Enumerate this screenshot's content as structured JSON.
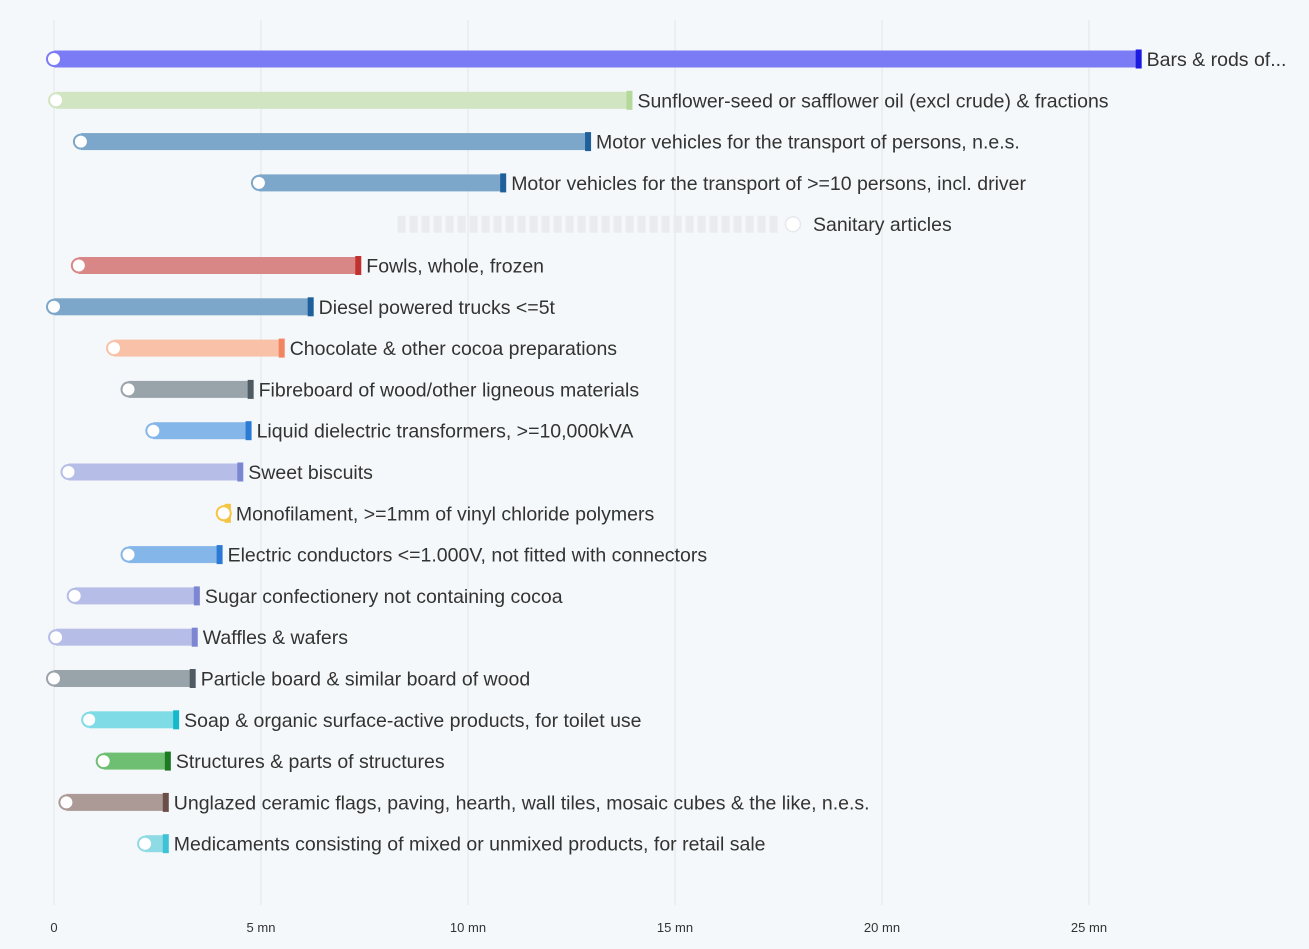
{
  "chart_data": {
    "type": "bar",
    "subtype": "range-bar",
    "title": "",
    "xlabel": "",
    "ylabel": "",
    "xlim": [
      0,
      30
    ],
    "x_tick_values": [
      0,
      5,
      10,
      15,
      20,
      25
    ],
    "x_tick_labels": [
      "0",
      "5 mn",
      "10 mn",
      "15 mn",
      "20 mn",
      "25 mn"
    ],
    "grid": true,
    "rows": [
      {
        "label": "Bars & rods of...",
        "start": 0.0,
        "end": 26.2,
        "color": "#7b7bf5",
        "end_color": "#1a1ae0"
      },
      {
        "label": "Sunflower-seed or safflower oil (excl crude) & fractions",
        "start": 0.05,
        "end": 13.9,
        "color": "#d2e5c2",
        "end_color": "#b4d99a"
      },
      {
        "label": "Motor vehicles for the transport of persons, n.e.s.",
        "start": 0.65,
        "end": 12.9,
        "color": "#7ca6ca",
        "end_color": "#1f5f9a"
      },
      {
        "label": "Motor vehicles for the transport of >=10 persons, incl. driver",
        "start": 4.95,
        "end": 10.85,
        "color": "#7ca6ca",
        "end_color": "#1f5f9a"
      },
      {
        "label": "Sanitary articles",
        "start": 17.85,
        "end": 8.3,
        "color": "#e9ebee",
        "end_color": "#e9ebee",
        "dashed": true
      },
      {
        "label": "Fowls, whole, frozen",
        "start": 0.6,
        "end": 7.35,
        "color": "#d98687",
        "end_color": "#c0312f"
      },
      {
        "label": "Diesel powered trucks <=5t",
        "start": 0.0,
        "end": 6.2,
        "color": "#7ca6ca",
        "end_color": "#1f5f9a"
      },
      {
        "label": "Chocolate & other cocoa preparations",
        "start": 1.45,
        "end": 5.5,
        "color": "#f8c1a8",
        "end_color": "#f2845f"
      },
      {
        "label": "Fibreboard of wood/other ligneous materials",
        "start": 1.8,
        "end": 4.75,
        "color": "#99a3aa",
        "end_color": "#4f5a63"
      },
      {
        "label": "Liquid dielectric transformers, >=10,000kVA",
        "start": 2.4,
        "end": 4.7,
        "color": "#85b6e9",
        "end_color": "#2a7ad6"
      },
      {
        "label": "Sweet biscuits",
        "start": 0.35,
        "end": 4.5,
        "color": "#b6bde6",
        "end_color": "#7c86d2"
      },
      {
        "label": "Monofilament, >=1mm of vinyl chloride polymers",
        "start": 4.1,
        "end": 4.2,
        "color": "#f5c542",
        "end_color": "#f5c542"
      },
      {
        "label": "Electric conductors <=1.000V, not fitted with connectors",
        "start": 1.8,
        "end": 4.0,
        "color": "#85b6e9",
        "end_color": "#2a7ad6"
      },
      {
        "label": "Sugar confectionery not containing cocoa",
        "start": 0.5,
        "end": 3.45,
        "color": "#b6bde6",
        "end_color": "#7c86d2"
      },
      {
        "label": "Waffles & wafers",
        "start": 0.05,
        "end": 3.4,
        "color": "#b6bde6",
        "end_color": "#7c86d2"
      },
      {
        "label": "Particle board & similar board of wood",
        "start": 0.0,
        "end": 3.35,
        "color": "#99a3aa",
        "end_color": "#4f5a63"
      },
      {
        "label": "Soap & organic surface-active products, for toilet use",
        "start": 0.85,
        "end": 2.95,
        "color": "#7fdce6",
        "end_color": "#16b8cc"
      },
      {
        "label": "Structures & parts of structures",
        "start": 1.2,
        "end": 2.75,
        "color": "#6fbf72",
        "end_color": "#1d7a22"
      },
      {
        "label": "Unglazed ceramic flags, paving, hearth, wall tiles, mosaic cubes & the like, n.e.s.",
        "start": 0.3,
        "end": 2.7,
        "color": "#ac9a96",
        "end_color": "#6b4e48"
      },
      {
        "label": "Medicaments consisting of mixed or unmixed products, for retail sale",
        "start": 2.2,
        "end": 2.7,
        "color": "#8edbe6",
        "end_color": "#3cc3d6"
      }
    ]
  }
}
